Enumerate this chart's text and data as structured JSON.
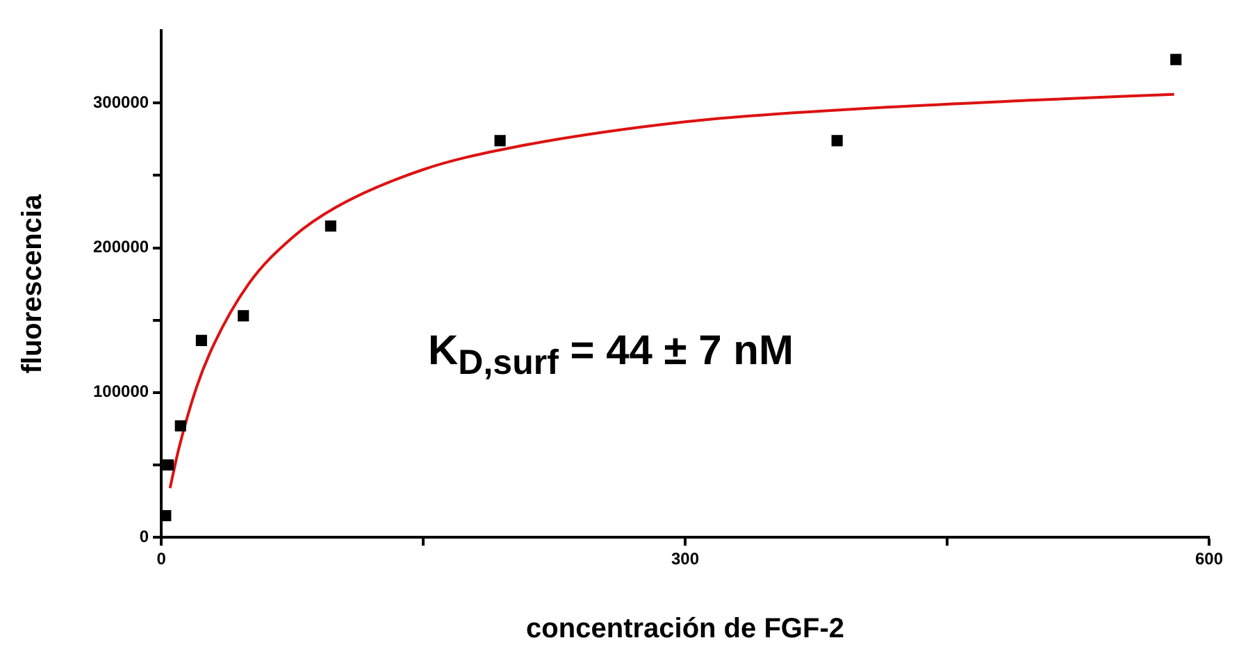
{
  "chart_data": {
    "type": "scatter",
    "xlabel": "concentración de FGF-2",
    "ylabel": "fluorescencia",
    "annotations": [
      "K$_{D,surf}$ = 44 ± 7 nM"
    ],
    "series": [
      {
        "type": "scatter",
        "color": "#000000",
        "marker": "square",
        "x": [
          2.5,
          4,
          11,
          23,
          47,
          97,
          194,
          387,
          581
        ],
        "values": [
          15000,
          50000,
          77000,
          136000,
          153000,
          215000,
          274000,
          274000,
          330000
        ]
      },
      {
        "type": "line",
        "color": "#dd1111",
        "marker": "none",
        "line_style": "solid",
        "x": [
          5,
          10,
          20,
          30,
          50,
          75,
          100,
          150,
          200,
          300,
          400,
          500,
          580
        ],
        "values": [
          34000,
          61000,
          103000,
          133000,
          175000,
          207000,
          228000,
          254000,
          269000,
          287000,
          296000,
          302000,
          306000
        ]
      }
    ],
    "xlim": [
      0,
      600
    ],
    "xticks": [
      0,
      {
        "value": 150,
        "label": null
      },
      300,
      {
        "value": 450,
        "label": null
      },
      600
    ],
    "ylim": [
      0,
      350000
    ],
    "yticks": [
      0,
      {
        "value": 50000,
        "label": null
      },
      100000,
      {
        "value": 150000,
        "label": null
      },
      200000,
      {
        "value": 250000,
        "label": null
      },
      300000
    ],
    "grid": false,
    "legend": false
  }
}
